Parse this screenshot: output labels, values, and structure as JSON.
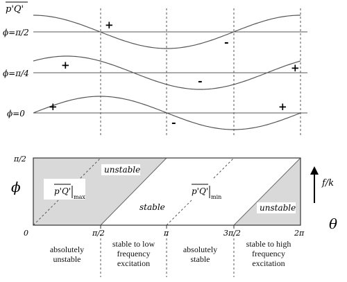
{
  "top_panel": {
    "title_label": "p'Q'",
    "rows": [
      {
        "phase_label": "ϕ=π/2",
        "plus": "+",
        "minus": "-",
        "plus2": ""
      },
      {
        "phase_label": "ϕ=π/4",
        "plus": "+",
        "minus": "-",
        "plus2": "+"
      },
      {
        "phase_label": "ϕ=0",
        "plus": "+",
        "minus": "-",
        "plus2": "+"
      }
    ]
  },
  "bottom_panel": {
    "y_axis_label": "ϕ",
    "y_tick_top": "π/2",
    "x_axis_label": "θ",
    "x_ticks": [
      "0",
      "π/2",
      "π",
      "3π/2",
      "2π"
    ],
    "max_label": "p'Q'",
    "max_subscript": "max",
    "min_label": "p'Q'",
    "min_subscript": "min",
    "unstable_label_1": "unstable",
    "unstable_label_2": "unstable",
    "stable_label": "stable",
    "arrow_label": "f/k",
    "shade_color": "#d9d9d9"
  },
  "regions": [
    {
      "line1": "absolutely",
      "line2": "unstable",
      "line3": ""
    },
    {
      "line1": "stable to low",
      "line2": "frequency",
      "line3": "excitation"
    },
    {
      "line1": "absolutely",
      "line2": "stable",
      "line3": ""
    },
    {
      "line1": "stable to high",
      "line2": "frequency",
      "line3": "excitation"
    }
  ]
}
